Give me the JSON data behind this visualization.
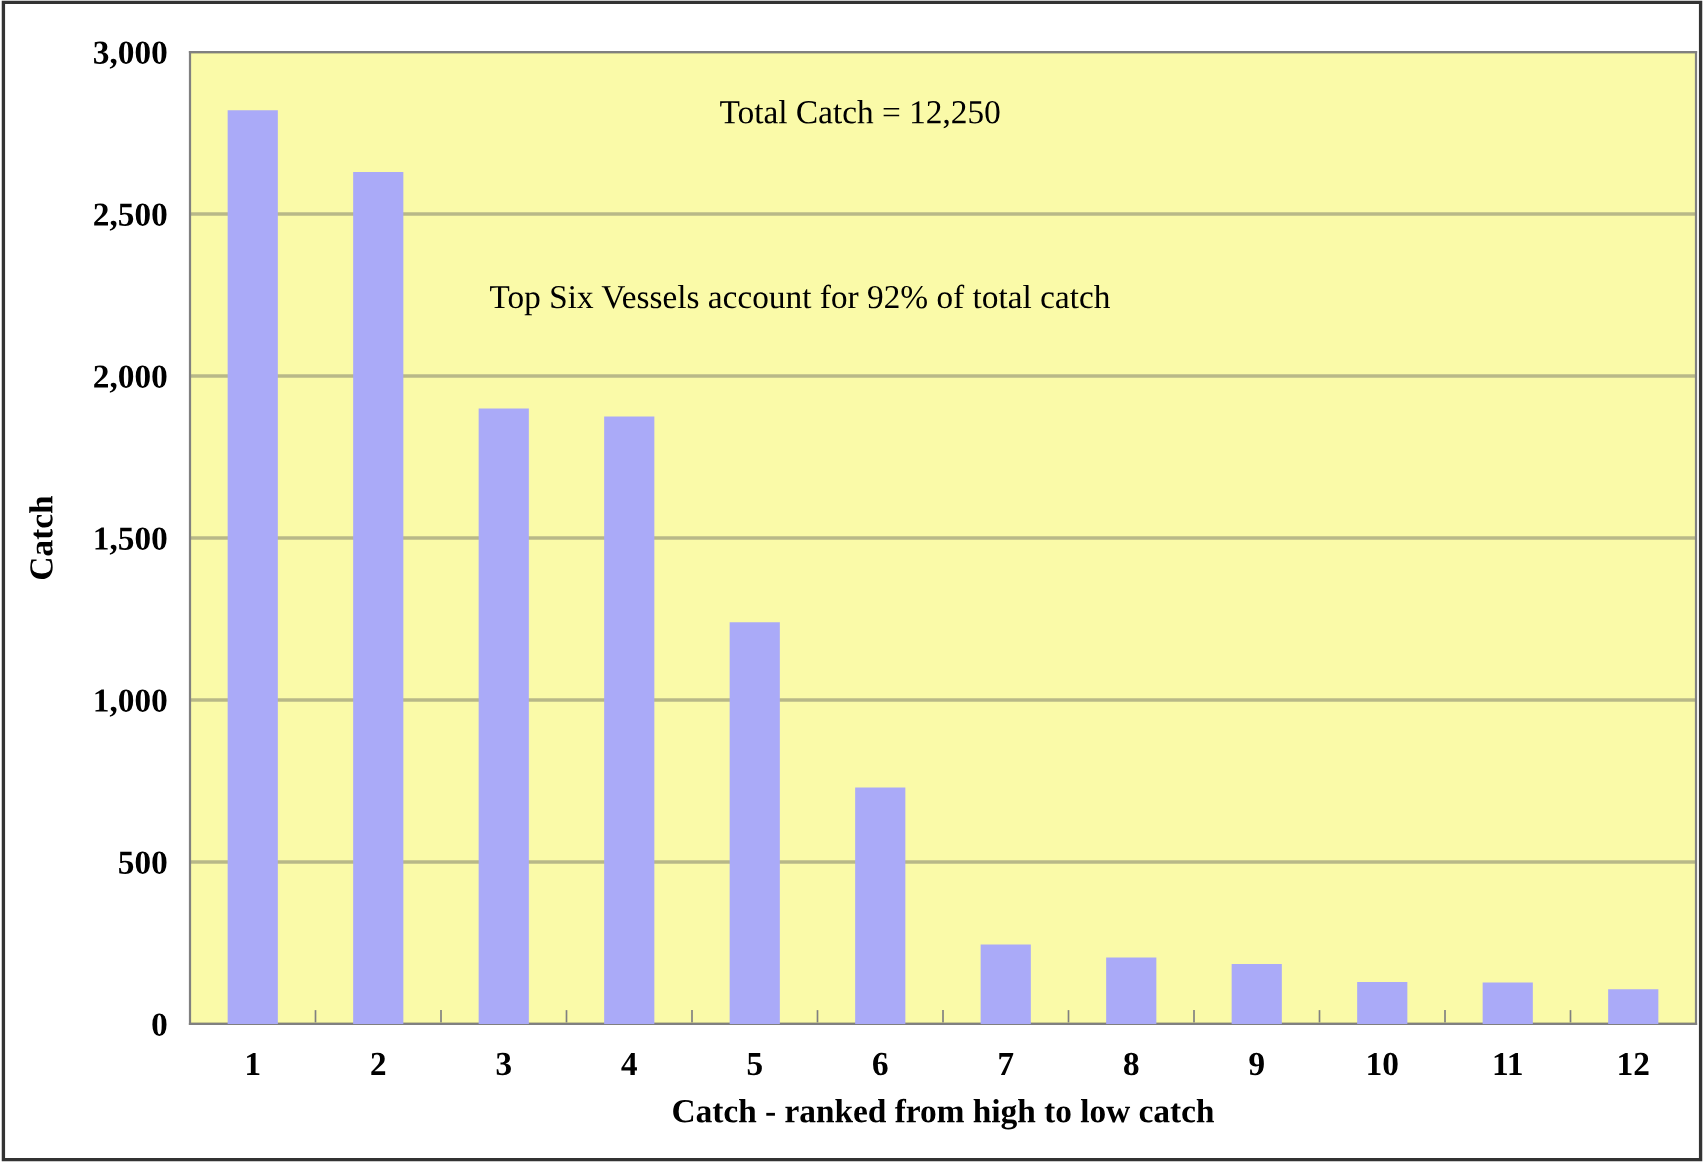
{
  "chart_data": {
    "type": "bar",
    "xlabel": "Catch - ranked from high to low catch",
    "ylabel": "Catch",
    "categories": [
      "1",
      "2",
      "3",
      "4",
      "5",
      "6",
      "7",
      "8",
      "9",
      "10",
      "11",
      "12"
    ],
    "values": [
      2820,
      2630,
      1900,
      1875,
      1240,
      730,
      245,
      205,
      185,
      130,
      128,
      107
    ],
    "color": "#aaaaf8",
    "ylim": [
      0,
      3000
    ],
    "yticks": [
      {
        "value": 0,
        "label": "0"
      },
      {
        "value": 500,
        "label": "500"
      },
      {
        "value": 1000,
        "label": "1,000"
      },
      {
        "value": 1500,
        "label": "1,500"
      },
      {
        "value": 2000,
        "label": "2,000"
      },
      {
        "value": 2500,
        "label": "2,500"
      },
      {
        "value": 3000,
        "label": "3,000"
      }
    ],
    "grid": "y",
    "annotations": [
      "Total Catch = 12,250",
      "Top Six Vessels account for 92% of total catch"
    ]
  }
}
